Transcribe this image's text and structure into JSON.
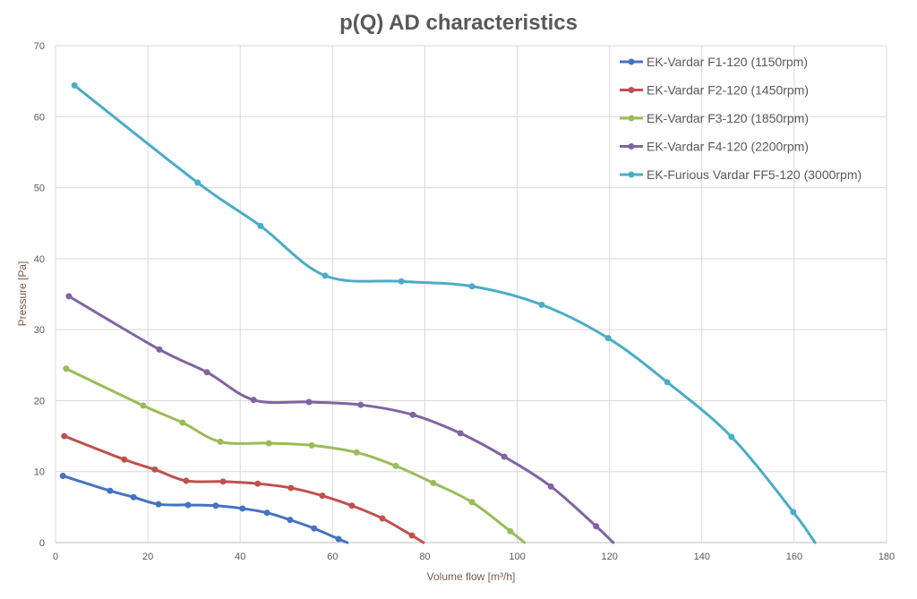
{
  "chart_data": {
    "type": "line",
    "title": "p(Q) AD characteristics",
    "xlabel": "Volume flow [m³/h]",
    "ylabel": "Pressure  [Pa]",
    "xlim": [
      0,
      180
    ],
    "ylim": [
      0,
      70
    ],
    "xticks": [
      0,
      20,
      40,
      60,
      80,
      100,
      120,
      140,
      160,
      180
    ],
    "yticks": [
      0,
      10,
      20,
      30,
      40,
      50,
      60,
      70
    ],
    "grid": true,
    "legend_position": "top-right",
    "smooth": true,
    "series": [
      {
        "name": "EK-Vardar F1-120 (1150rpm)",
        "color": "#4472c4",
        "x": [
          1.6,
          11.8,
          16.9,
          22.3,
          28.7,
          34.7,
          40.5,
          45.8,
          50.8,
          56.0,
          61.3,
          63.2
        ],
        "y": [
          9.4,
          7.3,
          6.4,
          5.4,
          5.3,
          5.2,
          4.8,
          4.2,
          3.2,
          2.0,
          0.5,
          0
        ]
      },
      {
        "name": "EK-Vardar F2-120 (1450rpm)",
        "color": "#c0504d",
        "x": [
          1.9,
          14.9,
          21.5,
          28.3,
          36.3,
          43.8,
          51.0,
          57.8,
          64.2,
          70.8,
          77.2,
          79.7
        ],
        "y": [
          15.0,
          11.7,
          10.3,
          8.7,
          8.6,
          8.3,
          7.7,
          6.6,
          5.2,
          3.4,
          1.0,
          0
        ]
      },
      {
        "name": "EK-Vardar F3-120 (1850rpm)",
        "color": "#9bbb59",
        "x": [
          2.3,
          19.0,
          27.5,
          35.7,
          46.2,
          55.5,
          65.2,
          73.7,
          81.8,
          90.2,
          98.5,
          101.6
        ],
        "y": [
          24.5,
          19.3,
          16.9,
          14.2,
          14.0,
          13.7,
          12.7,
          10.8,
          8.4,
          5.7,
          1.6,
          0
        ]
      },
      {
        "name": "EK-Vardar F4-120 (2200rpm)",
        "color": "#8064a2",
        "x": [
          2.9,
          22.5,
          32.8,
          42.9,
          54.9,
          66.1,
          77.4,
          87.7,
          97.2,
          107.3,
          117.1,
          120.8
        ],
        "y": [
          34.7,
          27.2,
          24.0,
          20.1,
          19.8,
          19.4,
          18.0,
          15.4,
          12.1,
          7.9,
          2.3,
          0
        ]
      },
      {
        "name": "EK-Furious Vardar FF5-120 (3000rpm)",
        "color": "#4bacc6",
        "x": [
          4.1,
          30.8,
          44.4,
          58.4,
          74.9,
          90.2,
          105.3,
          119.7,
          132.5,
          146.4,
          159.8,
          164.5
        ],
        "y": [
          64.4,
          50.7,
          44.6,
          37.6,
          36.8,
          36.1,
          33.5,
          28.8,
          22.6,
          14.9,
          4.3,
          0
        ]
      }
    ]
  }
}
